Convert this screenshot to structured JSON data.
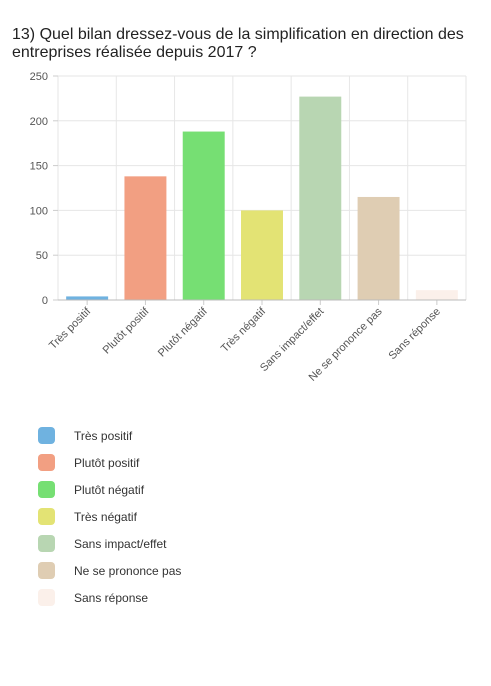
{
  "title": "13) Quel bilan dressez-vous de la simplification en direction des entreprises réalisée depuis 2017 ?",
  "chart_data": {
    "type": "bar",
    "categories": [
      "Très positif",
      "Plutôt positif",
      "Plutôt négatif",
      "Très négatif",
      "Sans impact/effet",
      "Ne se prononce pas",
      "Sans réponse"
    ],
    "values": [
      4,
      138,
      188,
      100,
      227,
      115,
      11
    ],
    "colors": [
      "#6fb2e0",
      "#f29f82",
      "#76df73",
      "#e3e374",
      "#b8d6b2",
      "#dfcdb3",
      "#fbf0ea"
    ],
    "ylim": [
      0,
      250
    ],
    "yticks": [
      0,
      50,
      100,
      150,
      200,
      250
    ],
    "grid": true,
    "legend_position": "bottom"
  }
}
